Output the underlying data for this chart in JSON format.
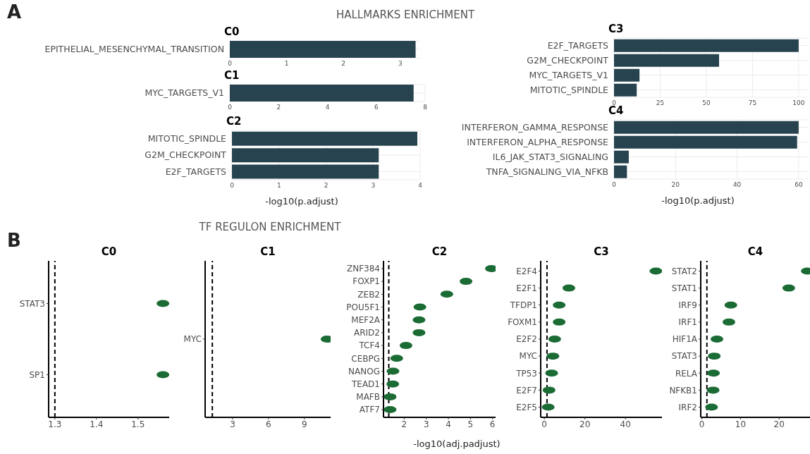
{
  "chart_data": [
    {
      "type": "bar",
      "orientation": "horizontal",
      "title": "C0",
      "categories": [
        "EPITHELIAL_MESENCHYMAL_TRANSITION"
      ],
      "values": [
        3.27
      ],
      "color": "#27434f",
      "xlim": [
        0,
        3.35
      ],
      "xticks": [
        0,
        1,
        2,
        3
      ],
      "grid": true,
      "annotations": [
        "A",
        "HALLMARKS ENRICHMENT"
      ]
    },
    {
      "type": "bar",
      "orientation": "horizontal",
      "title": "C1",
      "categories": [
        "MYC_TARGETS_V1"
      ],
      "values": [
        7.53
      ],
      "color": "#27434f",
      "xlim": [
        0,
        8
      ],
      "xticks": [
        0,
        2,
        4,
        6,
        8
      ],
      "grid": true
    },
    {
      "type": "bar",
      "orientation": "horizontal",
      "title": "C2",
      "categories": [
        "MITOTIC_SPINDLE",
        "G2M_CHECKPOINT",
        "E2F_TARGETS"
      ],
      "values": [
        3.94,
        3.12,
        3.12
      ],
      "color": "#27434f",
      "xlim": [
        0,
        4
      ],
      "xticks": [
        0,
        1,
        2,
        3,
        4
      ],
      "grid": true,
      "xlabel": "-log10(p.adjust)"
    },
    {
      "type": "bar",
      "orientation": "horizontal",
      "title": "C3",
      "categories": [
        "E2F_TARGETS",
        "G2M_CHECKPOINT",
        "MYC_TARGETS_V1",
        "MITOTIC_SPINDLE"
      ],
      "values": [
        100,
        56.9,
        13.8,
        12.3
      ],
      "color": "#27434f",
      "xlim": [
        0,
        105
      ],
      "xticks": [
        0,
        25,
        50,
        75,
        100
      ],
      "grid": true
    },
    {
      "type": "bar",
      "orientation": "horizontal",
      "title": "C4",
      "categories": [
        "INTERFERON_GAMMA_RESPONSE",
        "INTERFERON_ALPHA_RESPONSE",
        "IL6_JAK_STAT3_SIGNALING",
        "TNFA_SIGNALING_VIA_NFKB"
      ],
      "values": [
        60,
        59.5,
        4.8,
        4.2
      ],
      "color": "#27434f",
      "xlim": [
        0,
        63
      ],
      "xticks": [
        0,
        20,
        40,
        60
      ],
      "grid": true,
      "xlabel": "-log10(p.adjust)"
    },
    {
      "type": "scatter",
      "orientation": "horizontal",
      "title": "C0",
      "categories": [
        "STAT3",
        "SP1"
      ],
      "values": [
        1.56,
        1.56
      ],
      "color": "#1b6b35",
      "marker": "circle",
      "xlim": [
        1.285,
        1.575
      ],
      "xticks": [
        1.3,
        1.4,
        1.5
      ],
      "ref_lines": [
        {
          "axis": "x",
          "value": 1.3,
          "line_style": "dashed",
          "color": "#000000"
        }
      ],
      "annotations": [
        "B",
        "TF REGULON ENRICHMENT"
      ]
    },
    {
      "type": "scatter",
      "orientation": "horizontal",
      "title": "C1",
      "categories": [
        "MYC"
      ],
      "values": [
        10.9
      ],
      "color": "#1b6b35",
      "marker": "circle",
      "xlim": [
        0.7,
        11.2
      ],
      "xticks": [
        3,
        6,
        9
      ],
      "ref_lines": [
        {
          "axis": "x",
          "value": 1.3,
          "line_style": "dashed",
          "color": "#000000"
        }
      ]
    },
    {
      "type": "scatter",
      "orientation": "horizontal",
      "title": "C2",
      "categories": [
        "ZNF384",
        "FOXP1",
        "ZEB2",
        "POU5F1",
        "MEF2A",
        "ARID2",
        "TCF4",
        "CEBPG",
        "NANOG",
        "TEAD1",
        "MAFB",
        "ATF7"
      ],
      "values": [
        5.95,
        4.8,
        3.93,
        2.71,
        2.67,
        2.67,
        2.08,
        1.66,
        1.49,
        1.48,
        1.36,
        1.36
      ],
      "color": "#1b6b35",
      "marker": "circle",
      "xlim": [
        1.06,
        6.14
      ],
      "xticks": [
        2,
        3,
        4,
        5,
        6
      ],
      "ref_lines": [
        {
          "axis": "x",
          "value": 1.3,
          "line_style": "dashed",
          "color": "#000000"
        }
      ],
      "xlabel": "-log10(adj.padjust)"
    },
    {
      "type": "scatter",
      "orientation": "horizontal",
      "title": "C3",
      "categories": [
        "E2F4",
        "E2F1",
        "TFDP1",
        "FOXM1",
        "E2F2",
        "MYC",
        "TP53",
        "E2F7",
        "E2F5"
      ],
      "values": [
        55,
        12.1,
        7.3,
        7.3,
        5.1,
        4.2,
        3.6,
        2.3,
        1.9
      ],
      "color": "#1b6b35",
      "marker": "circle",
      "xlim": [
        -1.8,
        58
      ],
      "xticks": [
        0,
        20,
        40
      ],
      "ref_lines": [
        {
          "axis": "x",
          "value": 1.3,
          "line_style": "dashed",
          "color": "#000000"
        }
      ]
    },
    {
      "type": "scatter",
      "orientation": "horizontal",
      "title": "C4",
      "categories": [
        "STAT2",
        "STAT1",
        "IRF9",
        "IRF1",
        "HIF1A",
        "STAT3",
        "RELA",
        "NFKB1",
        "IRF2"
      ],
      "values": [
        27.3,
        22.5,
        7.5,
        7,
        3.9,
        3.2,
        3,
        2.9,
        2.5
      ],
      "color": "#1b6b35",
      "marker": "circle",
      "xlim": [
        -0.3,
        28
      ],
      "xticks": [
        0,
        10,
        20
      ],
      "ref_lines": [
        {
          "axis": "x",
          "value": 1.3,
          "line_style": "dashed",
          "color": "#000000"
        }
      ]
    }
  ]
}
